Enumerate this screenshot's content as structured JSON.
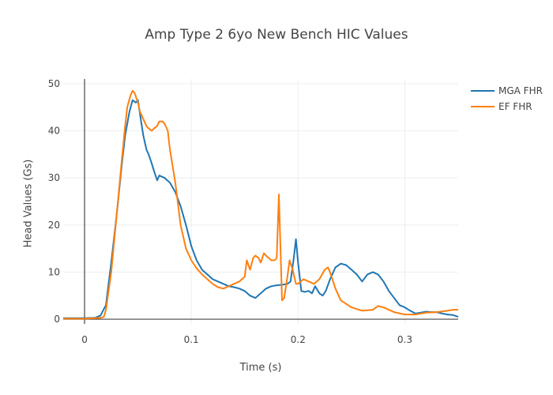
{
  "chart_data": {
    "type": "line",
    "title": "Amp Type 2 6yo New Bench HIC Values",
    "xlabel": "Time (s)",
    "ylabel": "Head Values (Gs)",
    "xlim": [
      -0.02,
      0.35
    ],
    "ylim": [
      -1,
      51
    ],
    "x_ticks": [
      0,
      0.1,
      0.2,
      0.3
    ],
    "x_tick_labels": [
      "0",
      "0.1",
      "0.2",
      "0.3"
    ],
    "y_ticks": [
      0,
      10,
      20,
      30,
      40,
      50
    ],
    "y_tick_labels": [
      "0",
      "10",
      "20",
      "30",
      "40",
      "50"
    ],
    "grid": true,
    "legend_position": "top-right",
    "series": [
      {
        "name": "MGA FHR",
        "color": "#1f77b4",
        "x": [
          -0.02,
          0,
          0.01,
          0.015,
          0.02,
          0.025,
          0.03,
          0.035,
          0.038,
          0.042,
          0.045,
          0.048,
          0.05,
          0.053,
          0.055,
          0.058,
          0.06,
          0.063,
          0.065,
          0.068,
          0.07,
          0.075,
          0.08,
          0.085,
          0.09,
          0.095,
          0.1,
          0.105,
          0.11,
          0.115,
          0.12,
          0.125,
          0.13,
          0.135,
          0.14,
          0.145,
          0.15,
          0.155,
          0.16,
          0.165,
          0.17,
          0.175,
          0.18,
          0.185,
          0.19,
          0.193,
          0.196,
          0.198,
          0.2,
          0.203,
          0.206,
          0.21,
          0.213,
          0.216,
          0.22,
          0.223,
          0.226,
          0.23,
          0.235,
          0.24,
          0.245,
          0.25,
          0.255,
          0.26,
          0.265,
          0.27,
          0.275,
          0.28,
          0.285,
          0.29,
          0.295,
          0.3,
          0.305,
          0.31,
          0.315,
          0.32,
          0.325,
          0.33,
          0.335,
          0.34,
          0.345,
          0.35
        ],
        "y": [
          0.2,
          0.2,
          0.3,
          0.8,
          3,
          12,
          22,
          33,
          39,
          44,
          46.5,
          46,
          46.5,
          42,
          39,
          36,
          35,
          33,
          31.5,
          29.5,
          30.5,
          30,
          29,
          27,
          24,
          20,
          15.5,
          12.5,
          10.5,
          9.5,
          8.5,
          8,
          7.5,
          7,
          6.8,
          6.5,
          6,
          5,
          4.5,
          5.5,
          6.5,
          7,
          7.2,
          7.3,
          7.5,
          8,
          13,
          17,
          12,
          6,
          5.8,
          6,
          5.5,
          7,
          5.5,
          5,
          6,
          8.5,
          11,
          11.8,
          11.5,
          10.5,
          9.5,
          8,
          9.5,
          10,
          9.5,
          8,
          6,
          4.5,
          3,
          2.5,
          1.8,
          1.2,
          1.4,
          1.6,
          1.5,
          1.5,
          1.2,
          1,
          0.9,
          0.5
        ]
      },
      {
        "name": "EF FHR",
        "color": "#ff7f0e",
        "x": [
          -0.02,
          0,
          0.01,
          0.015,
          0.018,
          0.02,
          0.025,
          0.03,
          0.035,
          0.038,
          0.04,
          0.043,
          0.045,
          0.047,
          0.05,
          0.052,
          0.055,
          0.058,
          0.06,
          0.063,
          0.065,
          0.068,
          0.07,
          0.073,
          0.075,
          0.078,
          0.08,
          0.085,
          0.09,
          0.095,
          0.1,
          0.105,
          0.11,
          0.115,
          0.12,
          0.125,
          0.13,
          0.135,
          0.14,
          0.145,
          0.15,
          0.152,
          0.155,
          0.158,
          0.16,
          0.163,
          0.165,
          0.168,
          0.17,
          0.175,
          0.178,
          0.18,
          0.182,
          0.185,
          0.187,
          0.19,
          0.192,
          0.195,
          0.198,
          0.2,
          0.205,
          0.21,
          0.215,
          0.22,
          0.225,
          0.228,
          0.23,
          0.235,
          0.24,
          0.25,
          0.26,
          0.27,
          0.275,
          0.28,
          0.29,
          0.3,
          0.31,
          0.32,
          0.33,
          0.34,
          0.345,
          0.35
        ],
        "y": [
          0.1,
          0.1,
          0.2,
          0.3,
          0.5,
          2,
          10,
          22,
          34,
          41,
          45,
          47.5,
          48.5,
          48,
          46,
          44,
          42.5,
          41,
          40.5,
          40,
          40.5,
          41,
          42,
          42,
          41.5,
          40,
          36,
          29,
          20,
          15,
          12.5,
          10.8,
          9.5,
          8.5,
          7.5,
          6.8,
          6.5,
          7,
          7.5,
          8,
          9,
          12.5,
          10.5,
          13,
          13.5,
          13,
          12,
          14,
          13.5,
          12.5,
          12.5,
          13,
          26.5,
          4,
          4.5,
          9,
          12.5,
          10.5,
          7.5,
          7.5,
          8.5,
          8,
          7.5,
          8.5,
          10.5,
          11,
          10,
          6.5,
          4,
          2.5,
          1.8,
          2,
          2.8,
          2.5,
          1.5,
          1,
          1,
          1.4,
          1.5,
          1.8,
          2,
          2
        ]
      }
    ]
  }
}
